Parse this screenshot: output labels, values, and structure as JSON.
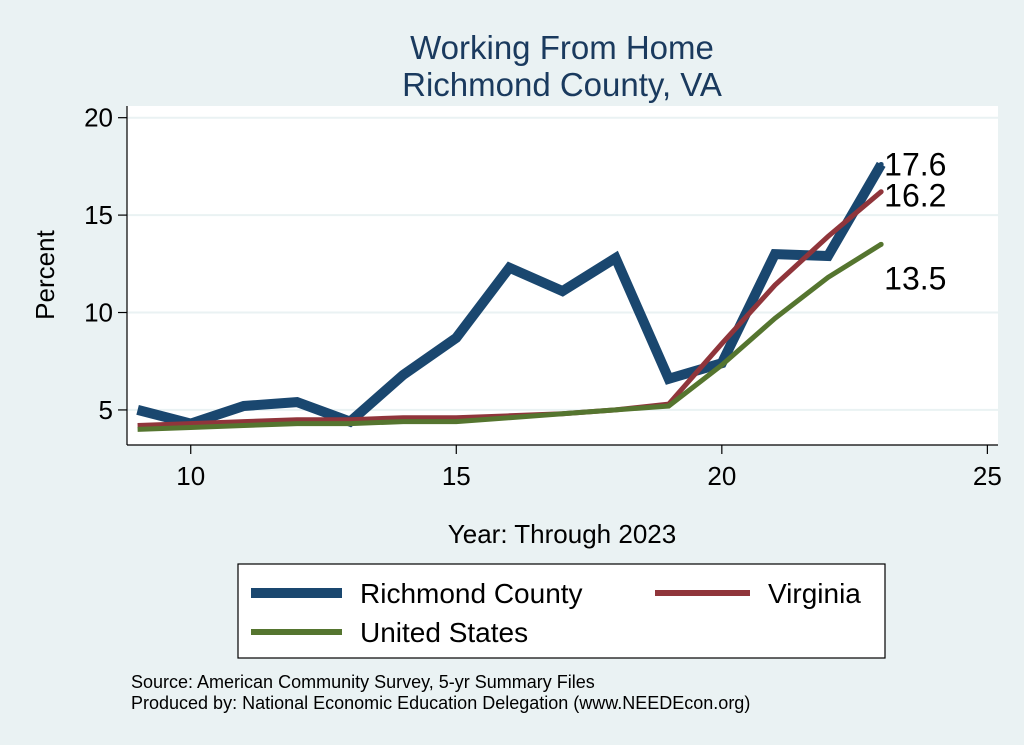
{
  "chart_data": {
    "type": "line",
    "title": [
      "Working From Home",
      "Richmond County, VA"
    ],
    "xlabel": "Year: Through 2023",
    "ylabel": "Percent",
    "xlim": [
      8.8,
      25.2
    ],
    "ylim": [
      3.2,
      20.6
    ],
    "xticks": [
      10,
      15,
      20,
      25
    ],
    "yticks": [
      5,
      10,
      15,
      20
    ],
    "grid": true,
    "legend_position": "bottom",
    "series": [
      {
        "name": "Richmond County",
        "color": "#1a476f",
        "x": [
          9,
          10,
          11,
          12,
          13,
          14,
          15,
          16,
          17,
          18,
          19,
          20,
          21,
          22,
          23
        ],
        "y": [
          5.0,
          4.3,
          5.2,
          5.4,
          4.4,
          6.8,
          8.7,
          12.3,
          11.1,
          12.8,
          6.6,
          7.4,
          13.0,
          12.9,
          17.6
        ],
        "end_label": "17.6"
      },
      {
        "name": "Virginia",
        "color": "#90353b",
        "x": [
          9,
          10,
          11,
          12,
          13,
          14,
          15,
          16,
          17,
          18,
          19,
          20,
          21,
          22,
          23
        ],
        "y": [
          4.2,
          4.3,
          4.4,
          4.5,
          4.5,
          4.6,
          4.6,
          4.7,
          4.8,
          5.0,
          5.3,
          8.4,
          11.4,
          13.9,
          16.2
        ],
        "end_label": "16.2"
      },
      {
        "name": "United States",
        "color": "#55752f",
        "x": [
          9,
          10,
          11,
          12,
          13,
          14,
          15,
          16,
          17,
          18,
          19,
          20,
          21,
          22,
          23
        ],
        "y": [
          4.0,
          4.1,
          4.2,
          4.3,
          4.3,
          4.4,
          4.4,
          4.6,
          4.8,
          5.0,
          5.2,
          7.3,
          9.7,
          11.8,
          13.5
        ],
        "end_label": "13.5"
      }
    ],
    "notes": [
      "Source: American Community Survey, 5-yr Summary Files",
      "Produced by: National Economic Education Delegation (www.NEEDEcon.org)"
    ]
  }
}
